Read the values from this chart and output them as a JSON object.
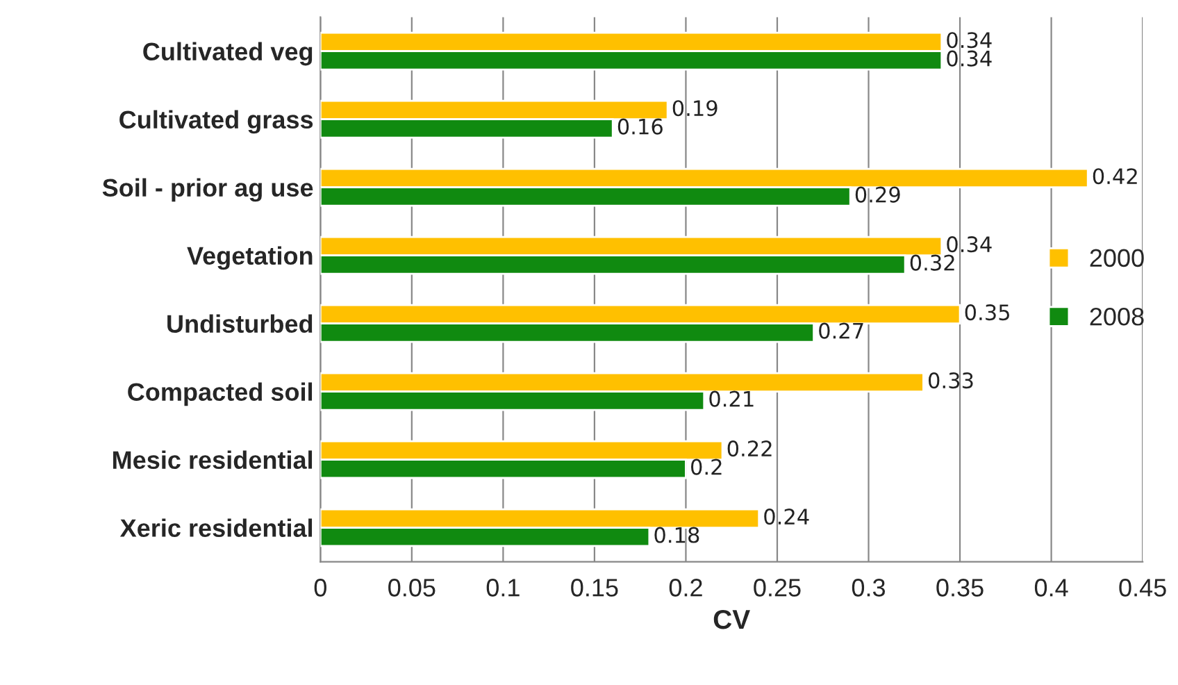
{
  "chart_data": {
    "type": "bar",
    "orientation": "horizontal",
    "xlabel": "CV",
    "categories": [
      "Cultivated veg",
      "Cultivated grass",
      "Soil - prior ag use",
      "Vegetation",
      "Undisturbed",
      "Compacted soil",
      "Mesic residential",
      "Xeric residential"
    ],
    "series": [
      {
        "name": "2000",
        "color": "#ffc000",
        "values": [
          0.34,
          0.19,
          0.42,
          0.34,
          0.35,
          0.33,
          0.22,
          0.24
        ]
      },
      {
        "name": "2008",
        "color": "#108a10",
        "values": [
          0.34,
          0.16,
          0.29,
          0.32,
          0.27,
          0.21,
          0.2,
          0.18
        ]
      }
    ],
    "xlim": [
      0,
      0.45
    ],
    "xticks": [
      0,
      0.05,
      0.1,
      0.15,
      0.2,
      0.25,
      0.3,
      0.35,
      0.4,
      0.45
    ],
    "grid": "x",
    "legend": "right",
    "data_labels": true
  }
}
